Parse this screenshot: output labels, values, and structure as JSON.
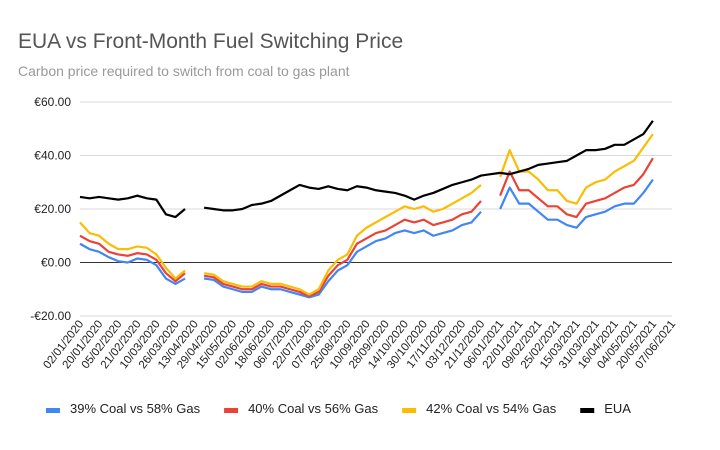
{
  "chart_data": {
    "type": "line",
    "title": "EUA vs Front-Month Fuel Switching Price",
    "subtitle": "Carbon price required to switch from coal to gas plant",
    "categories": [
      "02/01/2020",
      null,
      "20/01/2020",
      null,
      "05/02/2020",
      null,
      "21/02/2020",
      null,
      "10/03/2020",
      null,
      "26/03/2020",
      null,
      "13/04/2020",
      null,
      "29/04/2020",
      null,
      "15/05/2020",
      null,
      "02/06/2020",
      null,
      "18/06/2020",
      null,
      "06/07/2020",
      null,
      "22/07/2020",
      null,
      "07/08/2020",
      null,
      "25/08/2020",
      null,
      "10/09/2020",
      null,
      "28/09/2020",
      null,
      "14/10/2020",
      null,
      "30/10/2020",
      null,
      "17/11/2020",
      null,
      "03/12/2020",
      null,
      "21/12/2020",
      null,
      "06/01/2021",
      null,
      "22/01/2021",
      null,
      "09/02/2021",
      null,
      "25/02/2021",
      null,
      "15/03/2021",
      null,
      "31/03/2021",
      null,
      "16/04/2021",
      null,
      "04/05/2021",
      null,
      "20/05/2021",
      null,
      "07/06/2021"
    ],
    "series": [
      {
        "name": "39% Coal vs 58% Gas",
        "color": "#4285f4",
        "values": [
          7,
          5,
          4,
          2,
          0.5,
          0,
          1.5,
          1,
          -1,
          -6,
          -8,
          -6,
          null,
          -6,
          -6.5,
          -9,
          -10,
          -11,
          -11,
          -9,
          -10,
          -10,
          -11,
          -12,
          -13,
          -12,
          -7,
          -3,
          -1,
          4,
          6,
          8,
          9,
          11,
          12,
          11,
          12,
          10,
          11,
          12,
          14,
          15,
          19,
          null,
          20,
          28,
          22,
          22,
          19,
          16,
          16,
          14,
          13,
          17,
          18,
          19,
          21,
          22,
          22,
          26,
          31,
          null,
          null
        ]
      },
      {
        "name": "40% Coal vs 56% Gas",
        "color": "#ea4335",
        "values": [
          10,
          8,
          7,
          4,
          3,
          2.5,
          3.5,
          3,
          1,
          -4,
          -7,
          -4,
          null,
          -5,
          -5.5,
          -8,
          -9,
          -10,
          -10,
          -8,
          -9,
          -9,
          -10,
          -11,
          -12.5,
          -11,
          -5,
          -1,
          1,
          7,
          9,
          11,
          12,
          14,
          16,
          15,
          16,
          14,
          15,
          16,
          18,
          19,
          23,
          null,
          25,
          34,
          27,
          27,
          24,
          21,
          21,
          18,
          17,
          22,
          23,
          24,
          26,
          28,
          29,
          33,
          39,
          null,
          null
        ]
      },
      {
        "name": "42% Coal vs 54% Gas",
        "color": "#fbbc04",
        "values": [
          15,
          11,
          10,
          7,
          5,
          5,
          6,
          5.5,
          3,
          -2,
          -6,
          -3,
          null,
          -4,
          -4.5,
          -7,
          -8,
          -9,
          -9,
          -7,
          -8,
          -8,
          -9,
          -10,
          -12,
          -10,
          -3,
          1,
          3,
          10,
          13,
          15,
          17,
          19,
          21,
          20,
          21,
          19,
          20,
          22,
          24,
          26,
          29,
          null,
          32,
          42,
          34,
          34,
          31,
          27,
          27,
          23,
          22,
          28,
          30,
          31,
          34,
          36,
          38,
          43,
          48,
          null,
          null
        ]
      },
      {
        "name": "EUA",
        "color": "#000000",
        "values": [
          24.5,
          24,
          24.5,
          24,
          23.5,
          24,
          25,
          24,
          23.5,
          18,
          17,
          20,
          null,
          20.5,
          20,
          19.5,
          19.5,
          20,
          21.5,
          22,
          23,
          25,
          27,
          29,
          28,
          27.5,
          28.5,
          27.5,
          27,
          28.5,
          28,
          27,
          26.5,
          26,
          25,
          23.5,
          25,
          26,
          27.5,
          29,
          30,
          31,
          32.5,
          33,
          33.5,
          33,
          34,
          35,
          36.5,
          37,
          37.5,
          38,
          40,
          42,
          42,
          42.5,
          44,
          44,
          46,
          48,
          53,
          null,
          null
        ]
      }
    ],
    "ylim": [
      -20,
      60
    ],
    "yticks": [
      {
        "value": -20,
        "label": "-€20.00"
      },
      {
        "value": 0,
        "label": "€0.00"
      },
      {
        "value": 20,
        "label": "€20.00"
      },
      {
        "value": 40,
        "label": "€40.00"
      },
      {
        "value": 60,
        "label": "€60.00"
      }
    ],
    "grid": true,
    "legend": "bottom"
  }
}
